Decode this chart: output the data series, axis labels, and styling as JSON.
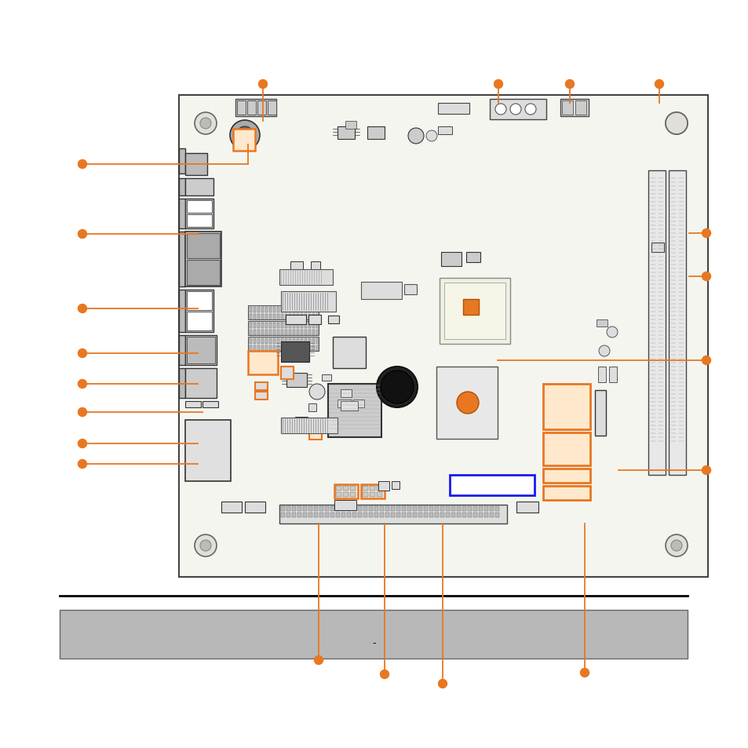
{
  "fig_width": 9.54,
  "fig_height": 9.54,
  "dpi": 100,
  "bg_color": "#ffffff",
  "board_color": "#f5f5f0",
  "board_border_color": "#444444",
  "orange": "#e87722",
  "blue": "#1a1aee",
  "gray_fill": "#cccccc",
  "dark_fill": "#444444",
  "light_fill": "#e8e8e8",
  "med_fill": "#bbbbbb",
  "footer_color": "#b8b8b8",
  "page_text": "-"
}
